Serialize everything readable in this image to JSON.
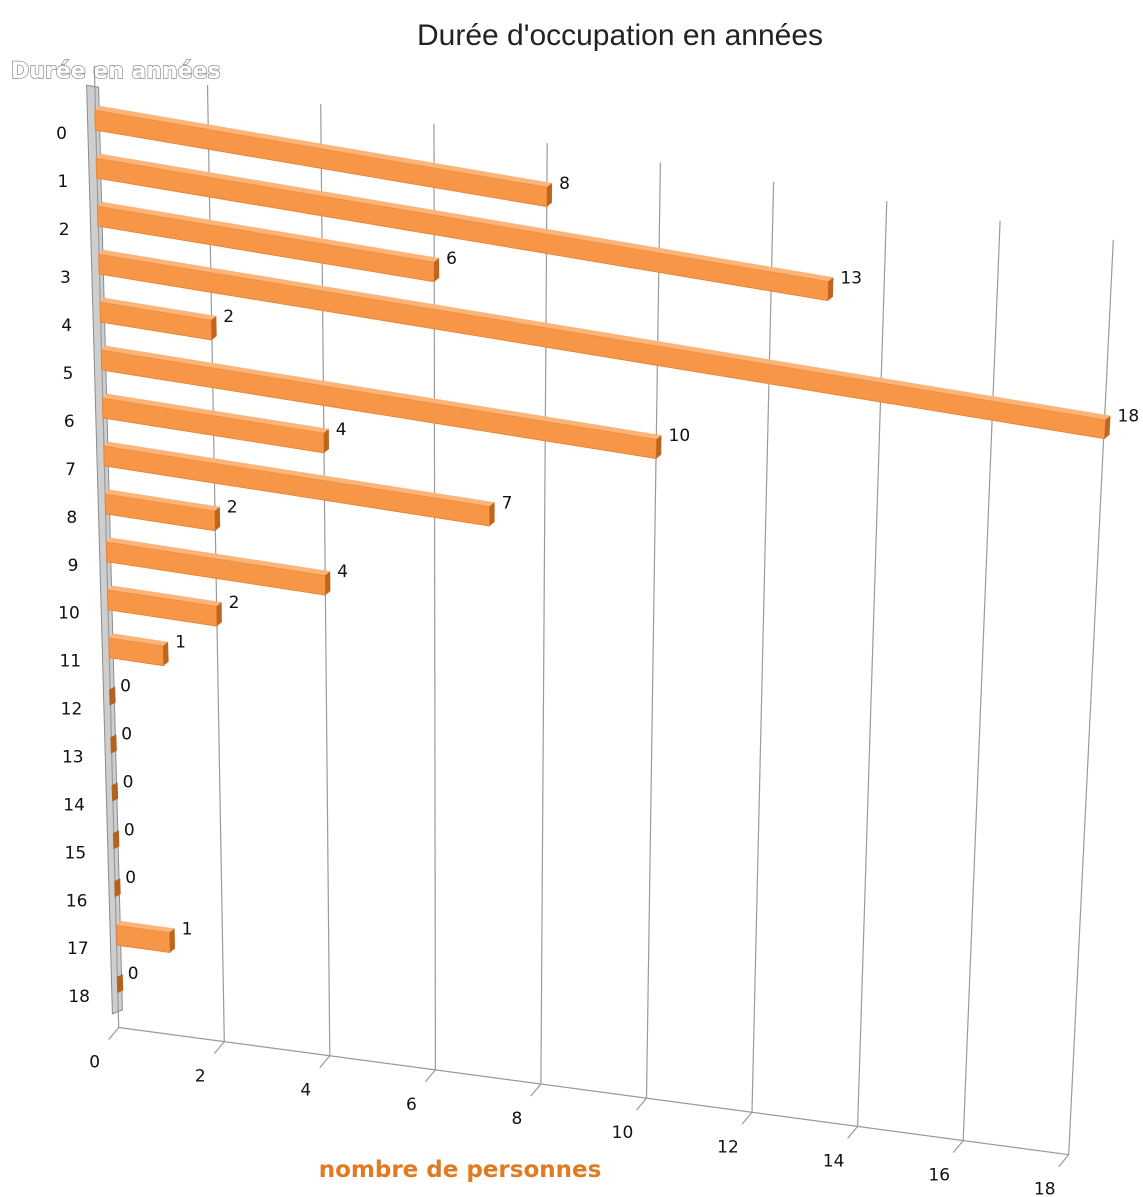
{
  "chart_data": {
    "type": "bar",
    "orientation": "horizontal",
    "title": "Durée d'occupation en années",
    "ylabel": "Durée en années",
    "xlabel": "nombre de personnes",
    "categories": [
      "0",
      "1",
      "2",
      "3",
      "4",
      "5",
      "6",
      "7",
      "8",
      "9",
      "10",
      "11",
      "12",
      "13",
      "14",
      "15",
      "16",
      "17",
      "18"
    ],
    "values": [
      8,
      13,
      6,
      18,
      2,
      10,
      4,
      7,
      2,
      4,
      2,
      1,
      0,
      0,
      0,
      0,
      0,
      1,
      0
    ],
    "x_ticks": [
      "0",
      "2",
      "4",
      "6",
      "8",
      "10",
      "12",
      "14",
      "16",
      "18"
    ],
    "xlim": [
      0,
      18
    ],
    "grid": true,
    "colors": {
      "bar_front": "#f79646",
      "bar_side": "#c0651e",
      "bar_top": "#fbb47a",
      "zero_bar": "#b5611f",
      "wall": "#a6a6a6",
      "gridline": "#9a9a9a"
    }
  }
}
